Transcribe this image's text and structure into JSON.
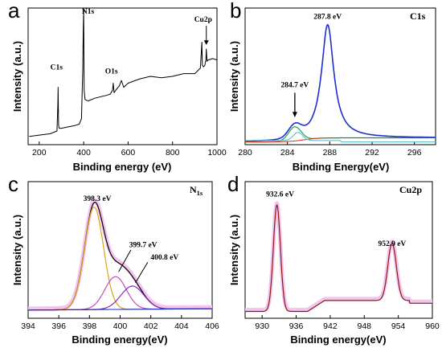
{
  "panels": [
    {
      "letter": "a",
      "title": "",
      "xlabel": "Binding energy (eV)",
      "ylabel": "Intensity (a.u.)"
    },
    {
      "letter": "b",
      "title": "C1s",
      "xlabel": "Binding Energy(eV)",
      "ylabel": "Intensity (a.u.)"
    },
    {
      "letter": "c",
      "title": "N",
      "title_sub": "1s",
      "xlabel": "Binding energy(eV)",
      "ylabel": "Intensity (a.u.)"
    },
    {
      "letter": "d",
      "title": "Cu2p",
      "xlabel": "Binding energy(eV)",
      "ylabel": "Intensity (a.u.)"
    }
  ],
  "chart_data": [
    {
      "type": "line",
      "panel": "a",
      "xlim": [
        150,
        1000
      ],
      "ylim": [
        0,
        1
      ],
      "xticks": [
        200,
        400,
        600,
        800,
        1000
      ],
      "series": [
        {
          "color": "#000000",
          "x": [
            155,
            200,
            250,
            280,
            284,
            285,
            287,
            290,
            300,
            330,
            360,
            380,
            390,
            396,
            398,
            400,
            402,
            406,
            420,
            450,
            500,
            520,
            530,
            533,
            537,
            545,
            560,
            570,
            580,
            600,
            650,
            700,
            750,
            800,
            850,
            900,
            925,
            932,
            934,
            940,
            945,
            950,
            952,
            955,
            960,
            980,
            1000
          ],
          "y": [
            0.06,
            0.07,
            0.08,
            0.1,
            0.3,
            0.42,
            0.14,
            0.12,
            0.12,
            0.13,
            0.14,
            0.15,
            0.19,
            0.55,
            0.85,
            0.99,
            0.4,
            0.33,
            0.32,
            0.34,
            0.36,
            0.37,
            0.4,
            0.45,
            0.38,
            0.4,
            0.43,
            0.47,
            0.42,
            0.45,
            0.48,
            0.5,
            0.49,
            0.5,
            0.52,
            0.52,
            0.56,
            0.75,
            0.58,
            0.57,
            0.58,
            0.62,
            0.7,
            0.61,
            0.62,
            0.63,
            0.62
          ]
        }
      ],
      "annotations": [
        {
          "text": "C1s",
          "x": 285
        },
        {
          "text": "N1s",
          "x": 398
        },
        {
          "text": "O1s",
          "x": 532
        },
        {
          "text": "Cu2p",
          "x": 945
        }
      ]
    },
    {
      "type": "line",
      "panel": "b",
      "xlim": [
        280,
        298
      ],
      "ylim": [
        0,
        1
      ],
      "xticks": [
        280,
        284,
        288,
        292,
        296
      ],
      "series": [
        {
          "color": "#1c2fd0",
          "kind": "envelope"
        },
        {
          "color": "#2ba04a",
          "kind": "peak",
          "center": 284.7
        },
        {
          "color": "#d0301f",
          "kind": "baseline"
        },
        {
          "color": "#4fb8c9",
          "kind": "peak",
          "center": 287.8
        }
      ],
      "peaks": [
        {
          "center": 284.7,
          "label": "284.7 eV"
        },
        {
          "center": 287.8,
          "label": "287.8 eV"
        }
      ]
    },
    {
      "type": "line",
      "panel": "c",
      "xlim": [
        394,
        406
      ],
      "ylim": [
        0,
        1
      ],
      "xticks": [
        394,
        396,
        398,
        400,
        402,
        404,
        406
      ],
      "series": [
        {
          "color": "#000000",
          "kind": "envelope"
        },
        {
          "color": "#d9a31a",
          "kind": "peak",
          "center": 398.3
        },
        {
          "color": "#c24ec4",
          "kind": "peak",
          "center": 399.7
        },
        {
          "color": "#8a2fb0",
          "kind": "peak",
          "center": 400.8
        },
        {
          "color": "#1c2fd0",
          "kind": "baseline"
        }
      ],
      "peaks": [
        {
          "center": 398.3,
          "label": "398.3 eV"
        },
        {
          "center": 399.7,
          "label": "399.7 eV"
        },
        {
          "center": 400.8,
          "label": "400.8 eV"
        }
      ]
    },
    {
      "type": "line",
      "panel": "d",
      "xlim": [
        927,
        960
      ],
      "ylim": [
        0,
        1
      ],
      "xticks": [
        930,
        936,
        942,
        948,
        954,
        960
      ],
      "series": [
        {
          "color": "#8b1a0e",
          "kind": "envelope"
        }
      ],
      "peaks": [
        {
          "center": 932.6,
          "label": "932.6 eV"
        },
        {
          "center": 952.9,
          "label": "952.9 eV"
        }
      ]
    }
  ]
}
